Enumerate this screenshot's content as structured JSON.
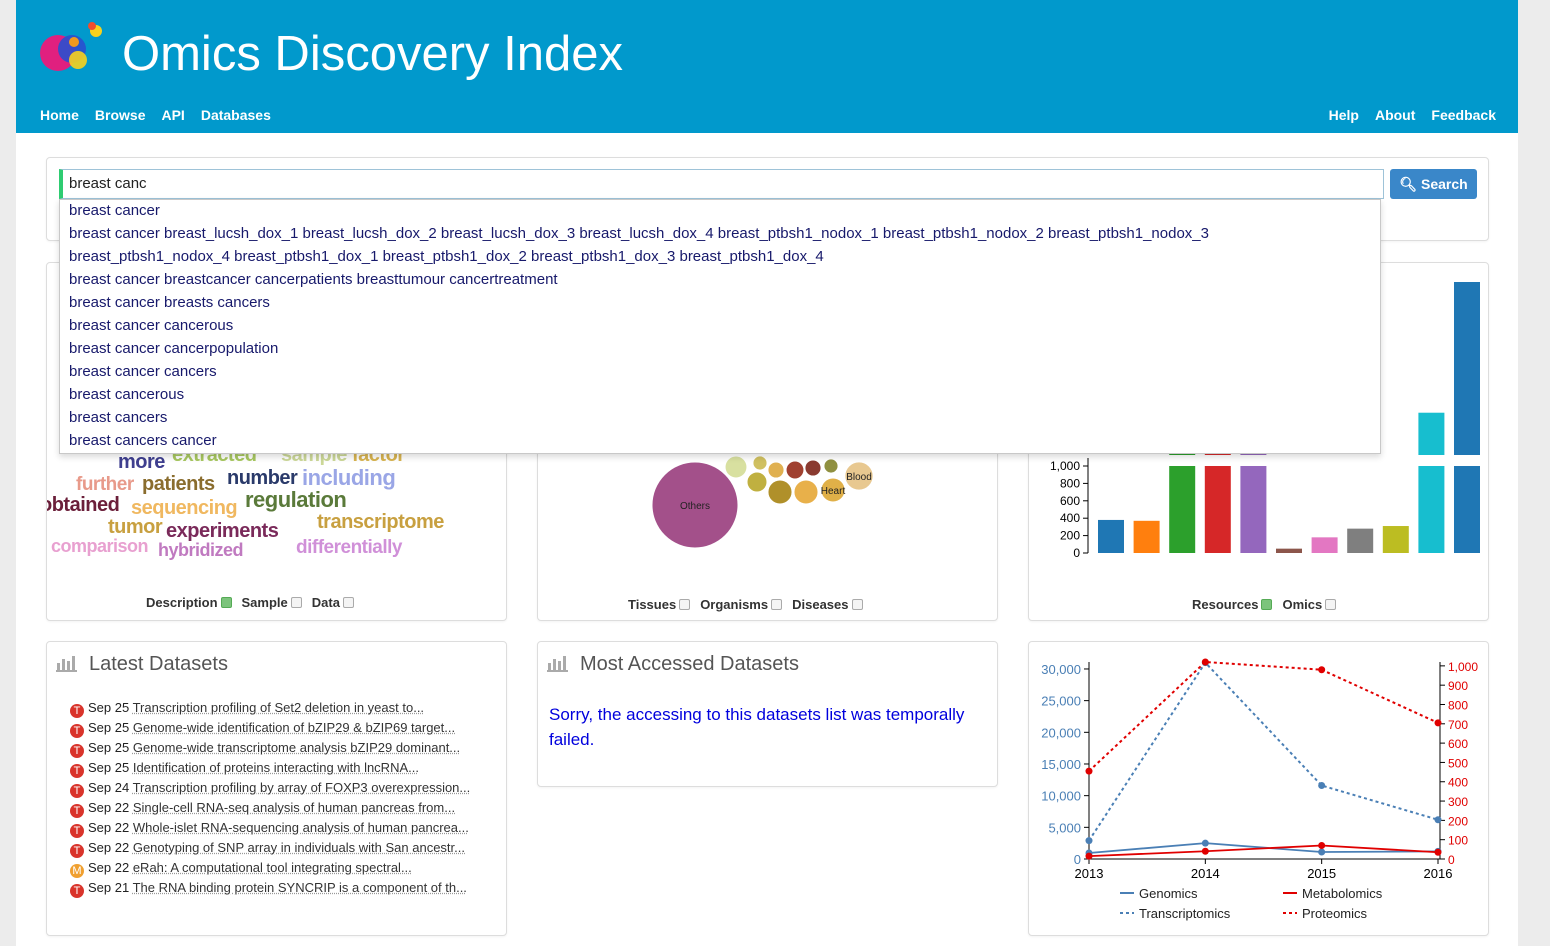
{
  "header": {
    "title": "Omics Discovery Index",
    "nav_left": [
      "Home",
      "Browse",
      "API",
      "Databases"
    ],
    "nav_right": [
      "Help",
      "About",
      "Feedback"
    ]
  },
  "search": {
    "query": "breast canc",
    "button": "Search",
    "suggestions": [
      "breast cancer",
      "breast cancer breast_lucsh_dox_1 breast_lucsh_dox_2 breast_lucsh_dox_3 breast_lucsh_dox_4 breast_ptbsh1_nodox_1 breast_ptbsh1_nodox_2 breast_ptbsh1_nodox_3",
      "breast_ptbsh1_nodox_4 breast_ptbsh1_dox_1 breast_ptbsh1_dox_2 breast_ptbsh1_dox_3 breast_ptbsh1_dox_4",
      "breast cancer breastcancer cancerpatients breasttumour cancertreatment",
      "breast cancer breasts cancers",
      "breast cancer cancerous",
      "breast cancer cancerpopulation",
      "breast cancer cancers",
      "breast cancerous",
      "breast cancers",
      "breast cancers cancer"
    ]
  },
  "chart_data": [
    {
      "type": "wordcloud",
      "words": [
        "more",
        "extracted",
        "sample",
        "factor",
        "further",
        "patients",
        "number",
        "including",
        "obtained",
        "sequencing",
        "regulation",
        "tumor",
        "experiments",
        "transcriptome",
        "comparison",
        "hybridized",
        "differentially"
      ],
      "colors": [
        "#3f3f8f",
        "#a8c860",
        "#ccd898",
        "#d8b450",
        "#e89a8a",
        "#8a6d2e",
        "#2a3a6a",
        "#9aa6e6",
        "#6b1f3a",
        "#f0b860",
        "#5a7a3a",
        "#c8a040",
        "#7a2a5a",
        "#c8a040",
        "#e8a0d0",
        "#c07ac0",
        "#d090d8"
      ],
      "options": [
        {
          "label": "Description",
          "checked": true
        },
        {
          "label": "Sample",
          "checked": false
        },
        {
          "label": "Data",
          "checked": false
        }
      ]
    },
    {
      "type": "bubble",
      "categories": [
        "Others",
        "Heart",
        "Blood",
        null,
        null,
        null,
        null,
        null,
        null,
        null,
        null,
        null
      ],
      "values": [
        1850,
        145,
        200,
        145,
        145,
        100,
        120,
        50,
        65,
        80,
        65,
        50
      ],
      "colors": [
        "#a3508a",
        "#e0b048",
        "#e8c890",
        "#e8b04a",
        "#b0902a",
        "#c0b040",
        "#d8e0a0",
        "#d0c060",
        "#e0b050",
        "#a04030",
        "#8a3a30",
        "#909040"
      ],
      "options": [
        {
          "label": "Tissues",
          "checked": false
        },
        {
          "label": "Organisms",
          "checked": false
        },
        {
          "label": "Diseases",
          "checked": false
        }
      ]
    },
    {
      "type": "bar",
      "categories": [
        null,
        null,
        null,
        null,
        null,
        null,
        null,
        null,
        null,
        null,
        null
      ],
      "values": [
        380,
        370,
        1100,
        1100,
        1050,
        50,
        180,
        280,
        310,
        3200,
        10000
      ],
      "colors": [
        "#1f77b4",
        "#ff7f0e",
        "#2ca02c",
        "#d62728",
        "#9467bd",
        "#8c564b",
        "#e377c2",
        "#7f7f7f",
        "#bcbd22",
        "#17becf",
        "#1f77b4"
      ],
      "ylim": [
        0,
        1000
      ],
      "yticks": [
        0,
        200,
        400,
        600,
        800,
        {
          "value": 1000,
          "label": "1,000"
        }
      ],
      "y2lim": [
        1000,
        10000
      ],
      "options": [
        {
          "label": "Resources",
          "checked": true
        },
        {
          "label": "Omics",
          "checked": false
        }
      ]
    },
    {
      "type": "line",
      "x": [
        2013,
        2014,
        2015,
        2016
      ],
      "xlim": [
        2013,
        2016
      ],
      "xticks": [
        2013,
        2014,
        2015,
        2016
      ],
      "ylim": [
        0,
        31100
      ],
      "yticks": [
        0,
        {
          "value": 5000,
          "label": "5,000"
        },
        {
          "value": 10000,
          "label": "10,000"
        },
        {
          "value": 15000,
          "label": "15,000"
        },
        {
          "value": 20000,
          "label": "20,000"
        },
        {
          "value": 25000,
          "label": "25,000"
        },
        {
          "value": 30000,
          "label": "30,000"
        }
      ],
      "y2lim": [
        0,
        1020
      ],
      "y2ticks": [
        0,
        100,
        200,
        300,
        400,
        500,
        600,
        700,
        800,
        900,
        {
          "value": 1000,
          "label": "1,000"
        }
      ],
      "y_color": "#4a7fb5",
      "y2_color": "#e00000",
      "legend": "bottom",
      "series": [
        {
          "name": "Genomics",
          "color": "#4a7fb5",
          "style": "solid",
          "values": [
            950,
            2500,
            1100,
            1200
          ]
        },
        {
          "name": "Metabolomics",
          "color": "#e00000",
          "style": "solid",
          "axis": "y2",
          "values": [
            15,
            40,
            70,
            35
          ]
        },
        {
          "name": "Transcriptomics",
          "color": "#4a7fb5",
          "style": "dotted",
          "values": [
            2900,
            31000,
            11600,
            6200
          ]
        },
        {
          "name": "Proteomics",
          "color": "#e00000",
          "style": "dotted",
          "axis": "y2",
          "values": [
            455,
            1020,
            980,
            705
          ]
        }
      ]
    }
  ],
  "latest": {
    "title": "Latest Datasets",
    "items": [
      {
        "badge": "T",
        "date": "Sep 25",
        "title": "Transcription profiling of Set2 deletion in yeast to..."
      },
      {
        "badge": "T",
        "date": "Sep 25",
        "title": "Genome-wide identification of bZIP29 & bZIP69 target..."
      },
      {
        "badge": "T",
        "date": "Sep 25",
        "title": "Genome-wide transcriptome analysis bZIP29 dominant..."
      },
      {
        "badge": "T",
        "date": "Sep 25",
        "title": "Identification of proteins interacting with lncRNA..."
      },
      {
        "badge": "T",
        "date": "Sep 24",
        "title": "Transcription profiling by array of FOXP3 overexpression..."
      },
      {
        "badge": "T",
        "date": "Sep 22",
        "title": "Single-cell RNA-seq analysis of human pancreas from..."
      },
      {
        "badge": "T",
        "date": "Sep 22",
        "title": "Whole-islet RNA-sequencing analysis of human pancrea..."
      },
      {
        "badge": "T",
        "date": "Sep 22",
        "title": "Genotyping of SNP array in individuals with San ancestr..."
      },
      {
        "badge": "M",
        "date": "Sep 22",
        "title": "eRah: A computational tool integrating spectral..."
      },
      {
        "badge": "T",
        "date": "Sep 21",
        "title": "The RNA binding protein SYNCRIP is a component of th..."
      }
    ]
  },
  "most_accessed": {
    "title": "Most Accessed Datasets",
    "message": "Sorry, the accessing to this datasets list was temporally failed."
  }
}
